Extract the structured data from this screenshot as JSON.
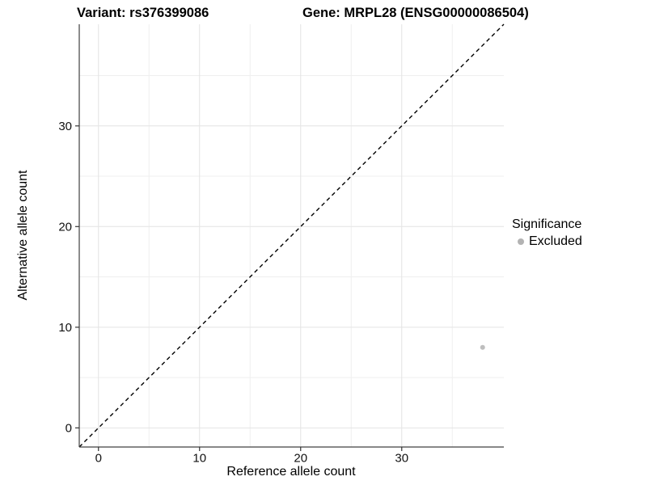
{
  "header": {
    "variant_title": "Variant: rs376399086",
    "gene_title": "Gene: MRPL28 (ENSG00000086504)"
  },
  "axes": {
    "x_label": "Reference allele count",
    "y_label": "Alternative allele count"
  },
  "legend": {
    "title": "Significance",
    "entries": [
      {
        "label": "Excluded",
        "color": "#b3b3b3",
        "marker": "circle"
      }
    ]
  },
  "colors": {
    "background": "#ffffff",
    "grid_major": "#e4e4e4",
    "grid_minor": "#efefef",
    "axis_line": "#404040",
    "tick": "#333333",
    "text": "#000000",
    "identity_line": "#000000",
    "point": "#bebebe"
  },
  "chart_data": {
    "type": "scatter",
    "title": "Variant: rs376399086   Gene: MRPL28 (ENSG00000086504)",
    "xlabel": "Reference allele count",
    "ylabel": "Alternative allele count",
    "xlim": [
      0,
      38
    ],
    "ylim": [
      0,
      38
    ],
    "x_ticks": [
      0,
      10,
      20,
      30
    ],
    "y_ticks": [
      0,
      10,
      20,
      30
    ],
    "x_minor_gridlines": [
      5,
      15,
      25,
      35
    ],
    "y_minor_gridlines": [
      5,
      15,
      25,
      35
    ],
    "grid": "on",
    "legend_position": "right",
    "series": [
      {
        "name": "Excluded",
        "color": "#bebebe",
        "points": [
          {
            "x": 38,
            "y": 8
          }
        ]
      }
    ],
    "annotations": [
      {
        "type": "abline",
        "label": "identity line y = x",
        "slope": 1,
        "intercept": 0,
        "style": "dashed",
        "color": "#000000"
      }
    ]
  }
}
